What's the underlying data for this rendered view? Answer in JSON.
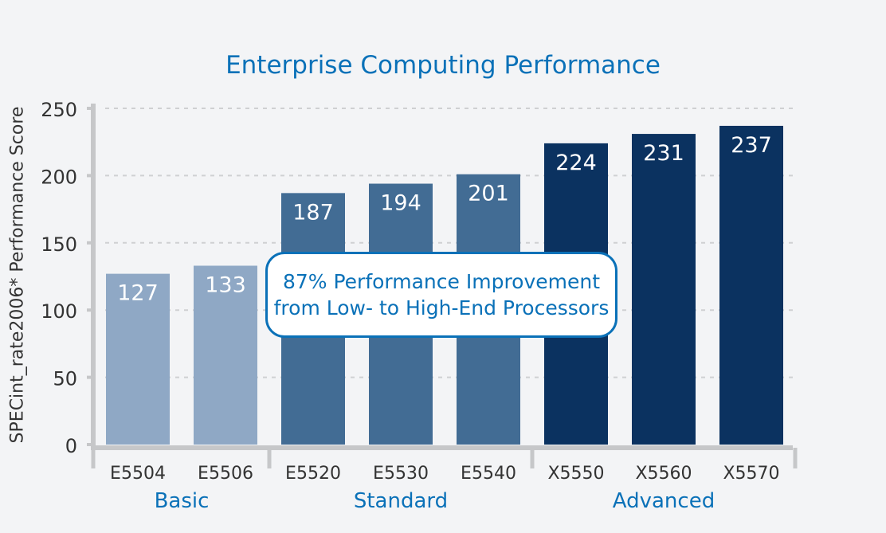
{
  "chart_data": {
    "type": "bar",
    "title": "Enterprise Computing Performance",
    "ylabel": "SPECint_rate2006* Performance Score",
    "xlabel": "",
    "ylim": [
      0,
      250
    ],
    "yticks": [
      0,
      50,
      100,
      150,
      200,
      250
    ],
    "grid": true,
    "categories": [
      "E5504",
      "E5506",
      "E5520",
      "E5530",
      "E5540",
      "X5550",
      "X5560",
      "X5570"
    ],
    "values": [
      127,
      133,
      187,
      194,
      201,
      224,
      231,
      237
    ],
    "groups": [
      {
        "name": "Basic",
        "start": 0,
        "end": 1,
        "color": "#8fa8c5"
      },
      {
        "name": "Standard",
        "start": 2,
        "end": 4,
        "color": "#426c94"
      },
      {
        "name": "Advanced",
        "start": 5,
        "end": 7,
        "color": "#0b3260"
      }
    ],
    "annotation": {
      "line1": "87% Performance Improvement",
      "line2": "from Low- to High-End Processors"
    }
  },
  "colors": {
    "accent": "#0a71b8",
    "axis": "#c6c7c9",
    "grid": "#cfd0d2",
    "background": "#f3f4f6"
  }
}
